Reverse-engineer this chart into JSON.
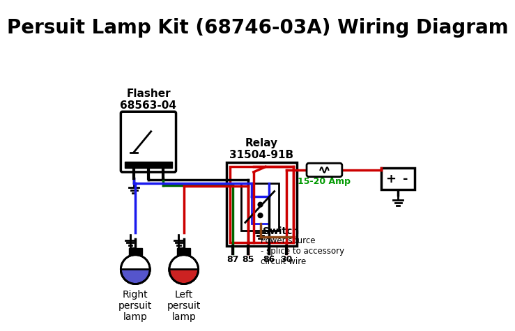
{
  "title": "Persuit Lamp Kit (68746-03A) Wiring Diagram",
  "title_fontsize": 20,
  "bg_color": "#ffffff",
  "relay_label": "Relay\n31504-91B",
  "flasher_label": "Flasher\n68563-04",
  "fuse_label": "15-20 Amp",
  "switch_label": "Switch",
  "power_label": "Power source\n- splice to accessory\ncircuit wire",
  "right_lamp_label": "Right\npersuit\nlamp",
  "left_lamp_label": "Left\npersuit\nlamp",
  "pin_labels": [
    "87",
    "85",
    "86",
    "30"
  ],
  "colors": {
    "red": "#cc0000",
    "blue": "#1a1aee",
    "green": "#006600",
    "brown": "#8B4513",
    "black": "#000000",
    "white": "#ffffff",
    "lamp_blue": "#5555cc",
    "lamp_red": "#cc2222",
    "fuse_green": "#009900"
  }
}
